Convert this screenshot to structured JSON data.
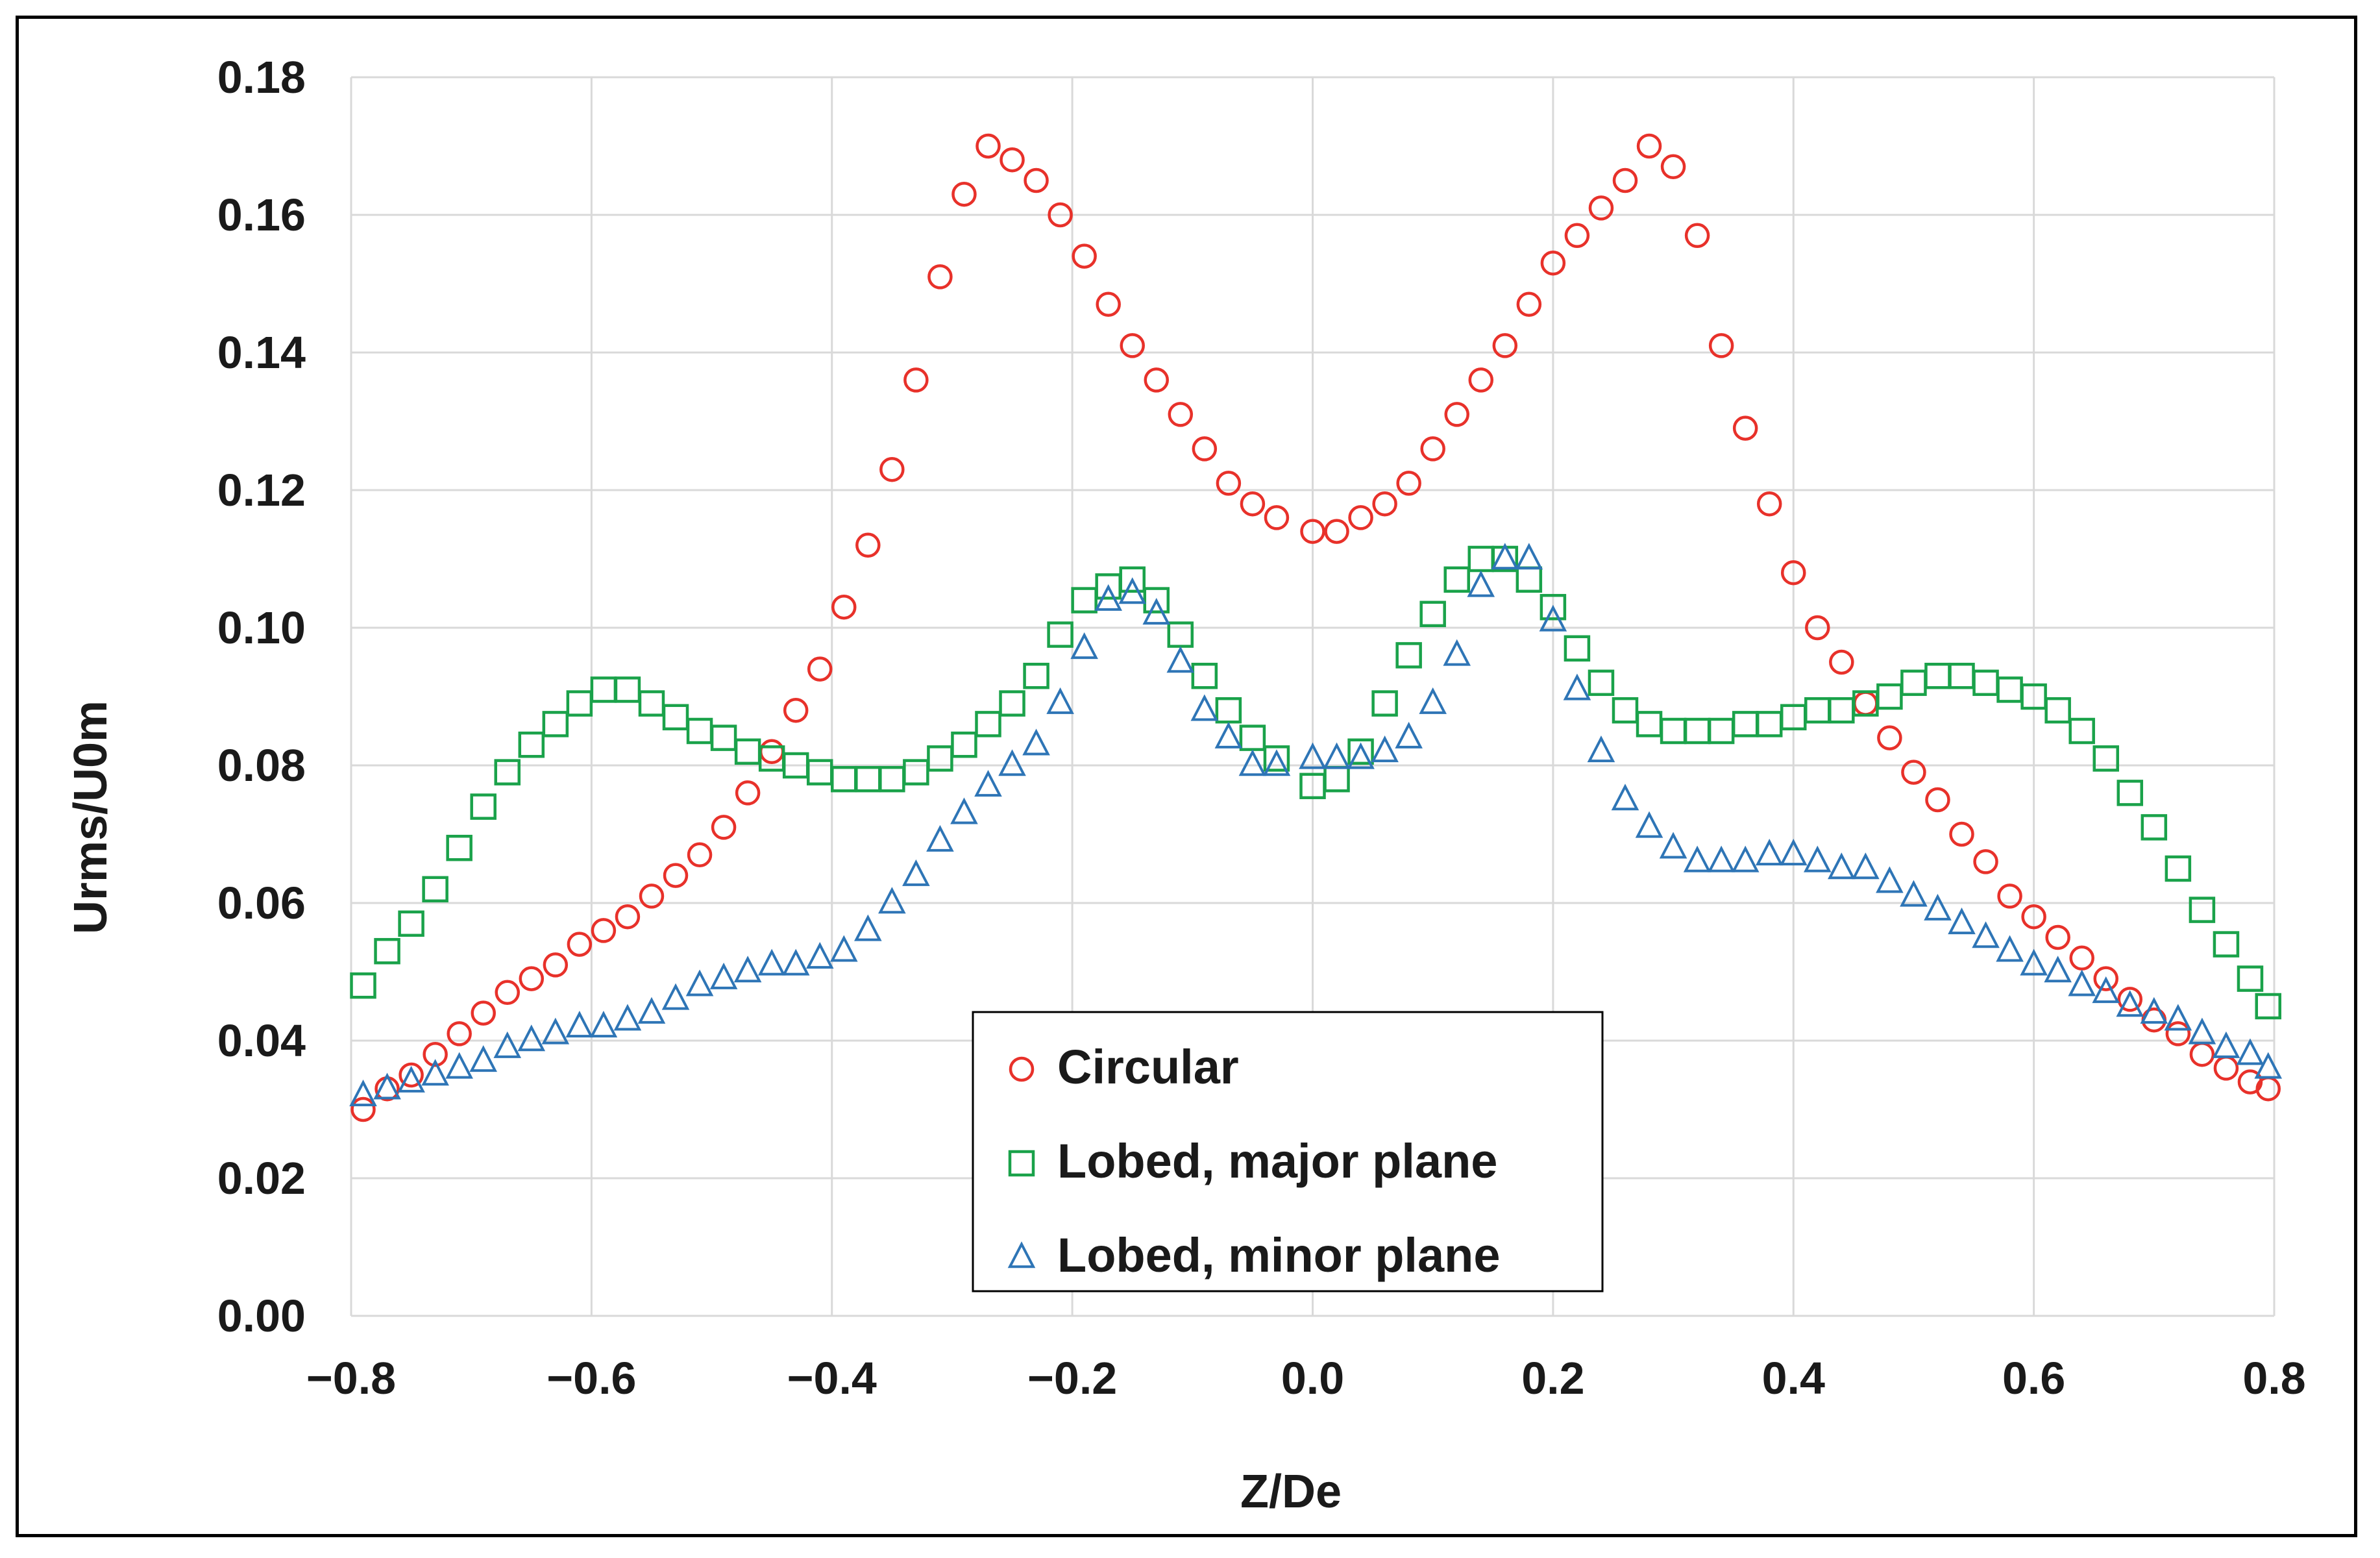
{
  "chart_data": {
    "type": "scatter",
    "title": "",
    "xlabel": "Z/De",
    "ylabel": "Urms/U0m",
    "xlim": [
      -0.8,
      0.8
    ],
    "ylim": [
      0.0,
      0.18
    ],
    "x_ticks": [
      "−0.8",
      "−0.6",
      "−0.4",
      "−0.2",
      "0.0",
      "0.2",
      "0.4",
      "0.6",
      "0.8"
    ],
    "x_tick_values": [
      -0.8,
      -0.6,
      -0.4,
      -0.2,
      0.0,
      0.2,
      0.4,
      0.6,
      0.8
    ],
    "y_ticks": [
      "0.00",
      "0.02",
      "0.04",
      "0.06",
      "0.08",
      "0.10",
      "0.12",
      "0.14",
      "0.16",
      "0.18"
    ],
    "y_tick_values": [
      0.0,
      0.02,
      0.04,
      0.06,
      0.08,
      0.1,
      0.12,
      0.14,
      0.16,
      0.18
    ],
    "grid": true,
    "legend_position": "bottom-center",
    "series": [
      {
        "name": "Circular",
        "marker": "circle",
        "color": "#e8312a",
        "x": [
          -0.79,
          -0.77,
          -0.75,
          -0.73,
          -0.71,
          -0.69,
          -0.67,
          -0.65,
          -0.63,
          -0.61,
          -0.59,
          -0.57,
          -0.55,
          -0.53,
          -0.51,
          -0.49,
          -0.47,
          -0.45,
          -0.43,
          -0.41,
          -0.39,
          -0.37,
          -0.35,
          -0.33,
          -0.31,
          -0.29,
          -0.27,
          -0.25,
          -0.23,
          -0.21,
          -0.19,
          -0.17,
          -0.15,
          -0.13,
          -0.11,
          -0.09,
          -0.07,
          -0.05,
          -0.03,
          0.0,
          0.02,
          0.04,
          0.06,
          0.08,
          0.1,
          0.12,
          0.14,
          0.16,
          0.18,
          0.2,
          0.22,
          0.24,
          0.26,
          0.28,
          0.3,
          0.32,
          0.34,
          0.36,
          0.38,
          0.4,
          0.42,
          0.44,
          0.46,
          0.48,
          0.5,
          0.52,
          0.54,
          0.56,
          0.58,
          0.6,
          0.62,
          0.64,
          0.66,
          0.68,
          0.7,
          0.72,
          0.74,
          0.76,
          0.78,
          0.795
        ],
        "y": [
          0.03,
          0.033,
          0.035,
          0.038,
          0.041,
          0.044,
          0.047,
          0.049,
          0.051,
          0.054,
          0.056,
          0.058,
          0.061,
          0.064,
          0.067,
          0.071,
          0.076,
          0.082,
          0.088,
          0.094,
          0.103,
          0.112,
          0.123,
          0.136,
          0.151,
          0.163,
          0.17,
          0.168,
          0.165,
          0.16,
          0.154,
          0.147,
          0.141,
          0.136,
          0.131,
          0.126,
          0.121,
          0.118,
          0.116,
          0.114,
          0.114,
          0.116,
          0.118,
          0.121,
          0.126,
          0.131,
          0.136,
          0.141,
          0.147,
          0.153,
          0.157,
          0.161,
          0.165,
          0.17,
          0.167,
          0.157,
          0.141,
          0.129,
          0.118,
          0.108,
          0.1,
          0.095,
          0.089,
          0.084,
          0.079,
          0.075,
          0.07,
          0.066,
          0.061,
          0.058,
          0.055,
          0.052,
          0.049,
          0.046,
          0.043,
          0.041,
          0.038,
          0.036,
          0.034,
          0.033
        ]
      },
      {
        "name": "Lobed, major plane",
        "marker": "square",
        "color": "#1aa24a",
        "x": [
          -0.79,
          -0.77,
          -0.75,
          -0.73,
          -0.71,
          -0.69,
          -0.67,
          -0.65,
          -0.63,
          -0.61,
          -0.59,
          -0.57,
          -0.55,
          -0.53,
          -0.51,
          -0.49,
          -0.47,
          -0.45,
          -0.43,
          -0.41,
          -0.39,
          -0.37,
          -0.35,
          -0.33,
          -0.31,
          -0.29,
          -0.27,
          -0.25,
          -0.23,
          -0.21,
          -0.19,
          -0.17,
          -0.15,
          -0.13,
          -0.11,
          -0.09,
          -0.07,
          -0.05,
          -0.03,
          0.0,
          0.02,
          0.04,
          0.06,
          0.08,
          0.1,
          0.12,
          0.14,
          0.16,
          0.18,
          0.2,
          0.22,
          0.24,
          0.26,
          0.28,
          0.3,
          0.32,
          0.34,
          0.36,
          0.38,
          0.4,
          0.42,
          0.44,
          0.46,
          0.48,
          0.5,
          0.52,
          0.54,
          0.56,
          0.58,
          0.6,
          0.62,
          0.64,
          0.66,
          0.68,
          0.7,
          0.72,
          0.74,
          0.76,
          0.78,
          0.795
        ],
        "y": [
          0.048,
          0.053,
          0.057,
          0.062,
          0.068,
          0.074,
          0.079,
          0.083,
          0.086,
          0.089,
          0.091,
          0.091,
          0.089,
          0.087,
          0.085,
          0.084,
          0.082,
          0.081,
          0.08,
          0.079,
          0.078,
          0.078,
          0.078,
          0.079,
          0.081,
          0.083,
          0.086,
          0.089,
          0.093,
          0.099,
          0.104,
          0.106,
          0.107,
          0.104,
          0.099,
          0.093,
          0.088,
          0.084,
          0.081,
          0.077,
          0.078,
          0.082,
          0.089,
          0.096,
          0.102,
          0.107,
          0.11,
          0.11,
          0.107,
          0.103,
          0.097,
          0.092,
          0.088,
          0.086,
          0.085,
          0.085,
          0.085,
          0.086,
          0.086,
          0.087,
          0.088,
          0.088,
          0.089,
          0.09,
          0.092,
          0.093,
          0.093,
          0.092,
          0.091,
          0.09,
          0.088,
          0.085,
          0.081,
          0.076,
          0.071,
          0.065,
          0.059,
          0.054,
          0.049,
          0.045
        ]
      },
      {
        "name": "Lobed, minor plane",
        "marker": "triangle",
        "color": "#2e75b6",
        "x": [
          -0.79,
          -0.77,
          -0.75,
          -0.73,
          -0.71,
          -0.69,
          -0.67,
          -0.65,
          -0.63,
          -0.61,
          -0.59,
          -0.57,
          -0.55,
          -0.53,
          -0.51,
          -0.49,
          -0.47,
          -0.45,
          -0.43,
          -0.41,
          -0.39,
          -0.37,
          -0.35,
          -0.33,
          -0.31,
          -0.29,
          -0.27,
          -0.25,
          -0.23,
          -0.21,
          -0.19,
          -0.17,
          -0.15,
          -0.13,
          -0.11,
          -0.09,
          -0.07,
          -0.05,
          -0.03,
          0.0,
          0.02,
          0.04,
          0.06,
          0.08,
          0.1,
          0.12,
          0.14,
          0.16,
          0.18,
          0.2,
          0.22,
          0.24,
          0.26,
          0.28,
          0.3,
          0.32,
          0.34,
          0.36,
          0.38,
          0.4,
          0.42,
          0.44,
          0.46,
          0.48,
          0.5,
          0.52,
          0.54,
          0.56,
          0.58,
          0.6,
          0.62,
          0.64,
          0.66,
          0.68,
          0.7,
          0.72,
          0.74,
          0.76,
          0.78,
          0.795
        ],
        "y": [
          0.032,
          0.033,
          0.034,
          0.035,
          0.036,
          0.037,
          0.039,
          0.04,
          0.041,
          0.042,
          0.042,
          0.043,
          0.044,
          0.046,
          0.048,
          0.049,
          0.05,
          0.051,
          0.051,
          0.052,
          0.053,
          0.056,
          0.06,
          0.064,
          0.069,
          0.073,
          0.077,
          0.08,
          0.083,
          0.089,
          0.097,
          0.104,
          0.105,
          0.102,
          0.095,
          0.088,
          0.084,
          0.08,
          0.08,
          0.081,
          0.081,
          0.081,
          0.082,
          0.084,
          0.089,
          0.096,
          0.106,
          0.11,
          0.11,
          0.101,
          0.091,
          0.082,
          0.075,
          0.071,
          0.068,
          0.066,
          0.066,
          0.066,
          0.067,
          0.067,
          0.066,
          0.065,
          0.065,
          0.063,
          0.061,
          0.059,
          0.057,
          0.055,
          0.053,
          0.051,
          0.05,
          0.048,
          0.047,
          0.045,
          0.044,
          0.043,
          0.041,
          0.039,
          0.038,
          0.036
        ]
      }
    ]
  }
}
